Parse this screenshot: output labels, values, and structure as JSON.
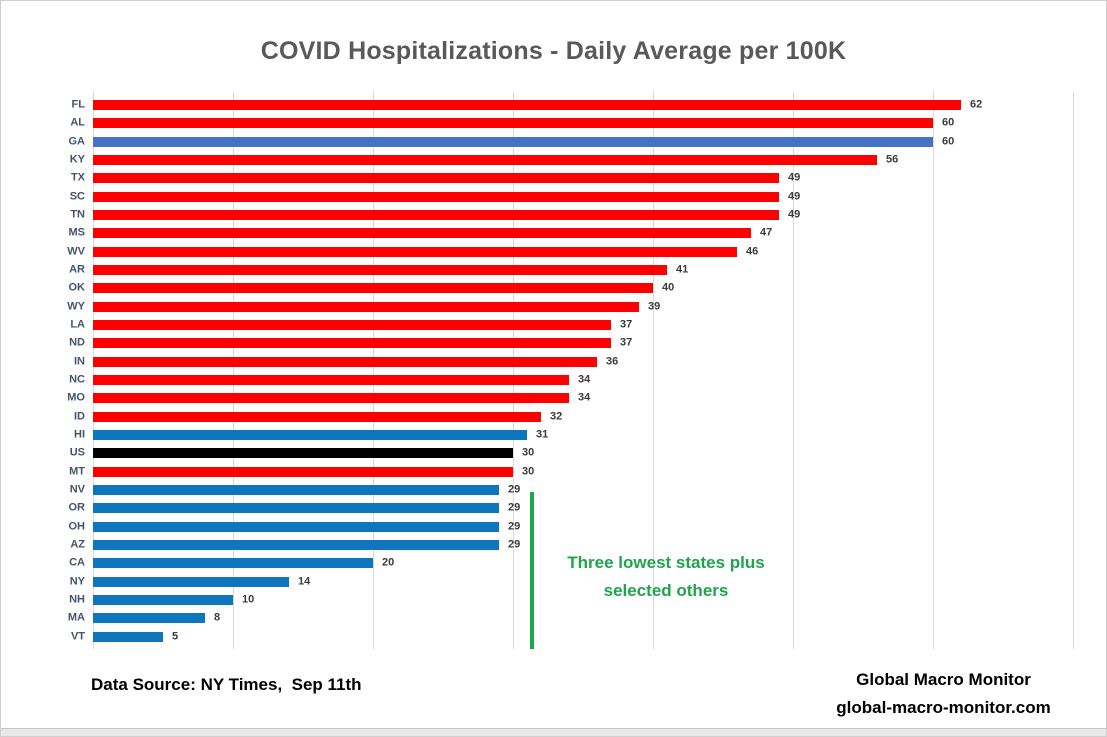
{
  "title": "COVID Hospitalizations - Daily Average per 100K",
  "chart_data": {
    "type": "bar",
    "orientation": "horizontal",
    "title": "COVID Hospitalizations - Daily Average per 100K",
    "categories": [
      "FL",
      "AL",
      "GA",
      "KY",
      "TX",
      "SC",
      "TN",
      "MS",
      "WV",
      "AR",
      "OK",
      "WY",
      "LA",
      "ND",
      "IN",
      "NC",
      "MO",
      "ID",
      "HI",
      "US",
      "MT",
      "NV",
      "OR",
      "OH",
      "AZ",
      "CA",
      "NY",
      "NH",
      "MA",
      "VT"
    ],
    "values": [
      62,
      60,
      60,
      56,
      49,
      49,
      49,
      47,
      46,
      41,
      40,
      39,
      37,
      37,
      36,
      34,
      34,
      32,
      31,
      30,
      30,
      29,
      29,
      29,
      29,
      20,
      14,
      10,
      8,
      5
    ],
    "bar_colors": [
      "#ff0000",
      "#ff0000",
      "#4472c4",
      "#ff0000",
      "#ff0000",
      "#ff0000",
      "#ff0000",
      "#ff0000",
      "#ff0000",
      "#ff0000",
      "#ff0000",
      "#ff0000",
      "#ff0000",
      "#ff0000",
      "#ff0000",
      "#ff0000",
      "#ff0000",
      "#ff0000",
      "#0e76bc",
      "#000000",
      "#ff0000",
      "#0e76bc",
      "#0e76bc",
      "#0e76bc",
      "#0e76bc",
      "#0e76bc",
      "#0e76bc",
      "#0e76bc",
      "#0e76bc",
      "#0e76bc"
    ],
    "xlim": [
      0,
      70
    ],
    "gridline_interval": 10,
    "grid": true,
    "value_labels_shown": true,
    "legend": "none"
  },
  "colors": {
    "red": "#ff0000",
    "blue": "#0e76bc",
    "highlight_blue": "#4472c4",
    "black": "#000000",
    "green": "#1ea54b",
    "gridline": "#d9d9d9",
    "title_text": "#595959",
    "axis_label_text": "#44546A"
  },
  "annotation": {
    "line1": "Three lowest states plus",
    "line2": "selected others"
  },
  "footer": {
    "data_source": "Data Source: NY Times,  Sep 11th",
    "brand_name": "Global Macro Monitor",
    "brand_url": "global-macro-monitor.com"
  }
}
